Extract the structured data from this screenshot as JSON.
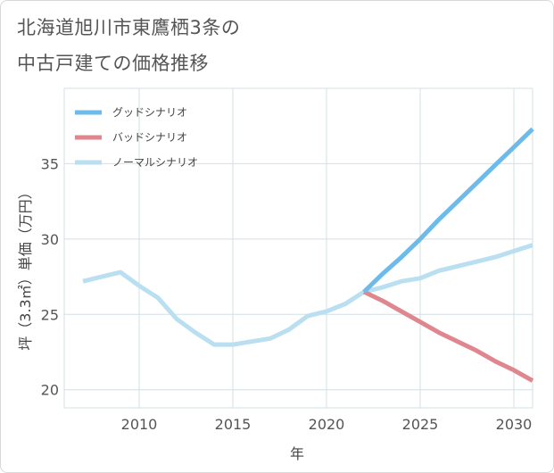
{
  "title_line1": "北海道旭川市東鷹栖3条の",
  "title_line2": "中古戸建ての価格推移",
  "chart_data": {
    "type": "line",
    "title": "北海道旭川市東鷹栖3条の中古戸建ての価格推移",
    "xlabel": "年",
    "ylabel": "坪（3.3㎡）単価（万円）",
    "xlim": [
      2006,
      2031
    ],
    "ylim": [
      18.8,
      40
    ],
    "xticks": [
      2010,
      2015,
      2020,
      2025,
      2030
    ],
    "yticks": [
      20,
      25,
      30,
      35
    ],
    "grid": true,
    "legend_position": "top-left",
    "series": [
      {
        "name": "グッドシナリオ",
        "color": "#6cbbeb",
        "x": [
          2022,
          2023,
          2024,
          2025,
          2026,
          2027,
          2028,
          2029,
          2030,
          2031
        ],
        "y": [
          26.5,
          27.7,
          28.8,
          30.0,
          31.3,
          32.5,
          33.7,
          34.9,
          36.1,
          37.3
        ]
      },
      {
        "name": "バッドシナリオ",
        "color": "#e0868e",
        "x": [
          2022,
          2023,
          2024,
          2025,
          2026,
          2027,
          2028,
          2029,
          2030,
          2031
        ],
        "y": [
          26.5,
          25.9,
          25.2,
          24.5,
          23.8,
          23.2,
          22.6,
          21.9,
          21.3,
          20.6
        ]
      },
      {
        "name": "ノーマルシナリオ",
        "color": "#b9dff1",
        "x": [
          2007,
          2008,
          2009,
          2010,
          2011,
          2012,
          2013,
          2014,
          2015,
          2016,
          2017,
          2018,
          2019,
          2020,
          2021,
          2022,
          2023,
          2024,
          2025,
          2026,
          2027,
          2028,
          2029,
          2030,
          2031
        ],
        "y": [
          27.2,
          27.5,
          27.8,
          26.9,
          26.1,
          24.7,
          23.8,
          23.0,
          23.0,
          23.2,
          23.4,
          24.0,
          24.9,
          25.2,
          25.7,
          26.5,
          26.8,
          27.2,
          27.4,
          27.9,
          28.2,
          28.5,
          28.8,
          29.2,
          29.6
        ]
      }
    ]
  }
}
